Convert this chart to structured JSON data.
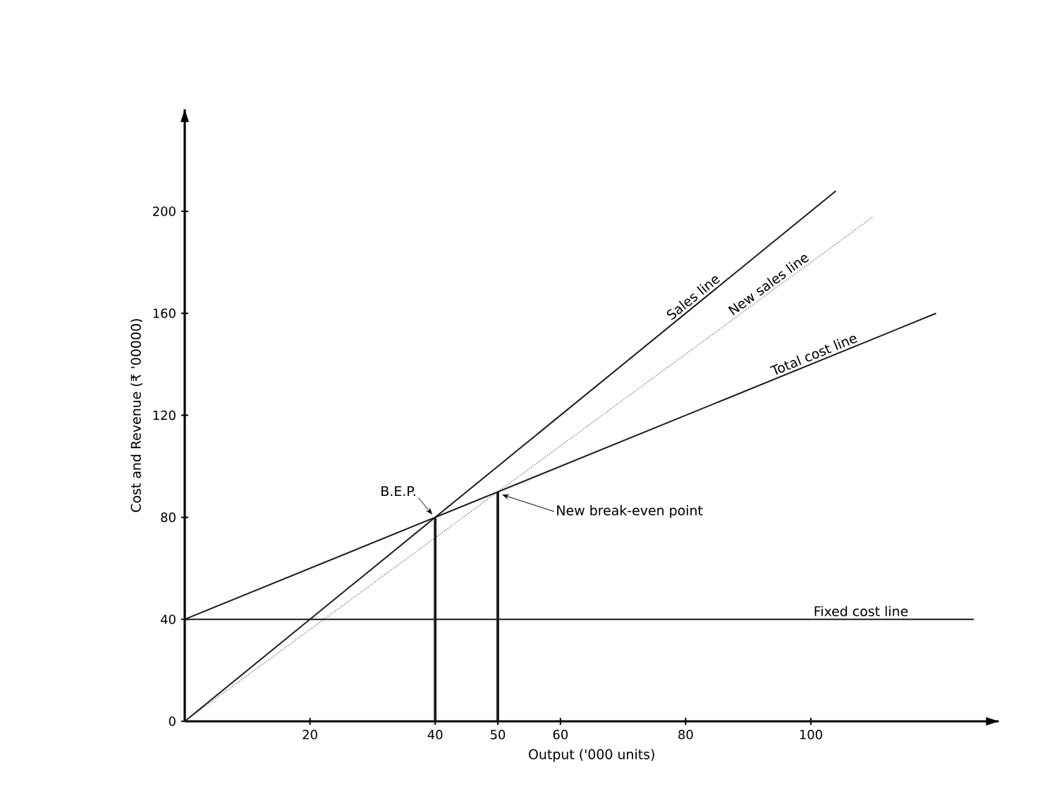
{
  "chart_data": {
    "type": "line",
    "xlabel": "Output ('000 units)",
    "ylabel": "Cost and Revenue (₹ '00000)",
    "xlim": [
      0,
      130
    ],
    "ylim": [
      0,
      240
    ],
    "xticks": [
      20,
      40,
      50,
      60,
      80,
      100
    ],
    "yticks": [
      0,
      40,
      80,
      120,
      160,
      200
    ],
    "grid": false,
    "series": [
      {
        "color": "#1a1a1a",
        "x": [
          0,
          104
        ],
        "values": [
          0,
          208
        ]
      },
      {
        "color": "#555555",
        "line_style": "dotted",
        "x": [
          0,
          110
        ],
        "values": [
          0,
          198
        ]
      },
      {
        "color": "#1a1a1a",
        "x": [
          0,
          120
        ],
        "values": [
          40,
          160
        ]
      },
      {
        "color": "#1a1a1a",
        "x": [
          0,
          126
        ],
        "values": [
          40,
          40
        ]
      },
      {
        "color": "#1a1a1a",
        "x": [
          40,
          40
        ],
        "values": [
          0,
          80
        ]
      },
      {
        "color": "#1a1a1a",
        "x": [
          50,
          50
        ],
        "values": [
          0,
          90
        ]
      }
    ],
    "annotations": [
      {
        "text": "Sales line",
        "x": 82,
        "y": 164
      },
      {
        "text": "New sales line",
        "x": 94,
        "y": 169
      },
      {
        "text": "Total cost line",
        "x": 101,
        "y": 141
      },
      {
        "text": "Fixed cost line",
        "x": 108,
        "y": 40
      },
      {
        "text": "B.E.P.",
        "x": 40,
        "y": 80
      },
      {
        "text": "New break-even point",
        "x": 50,
        "y": 90
      }
    ]
  }
}
